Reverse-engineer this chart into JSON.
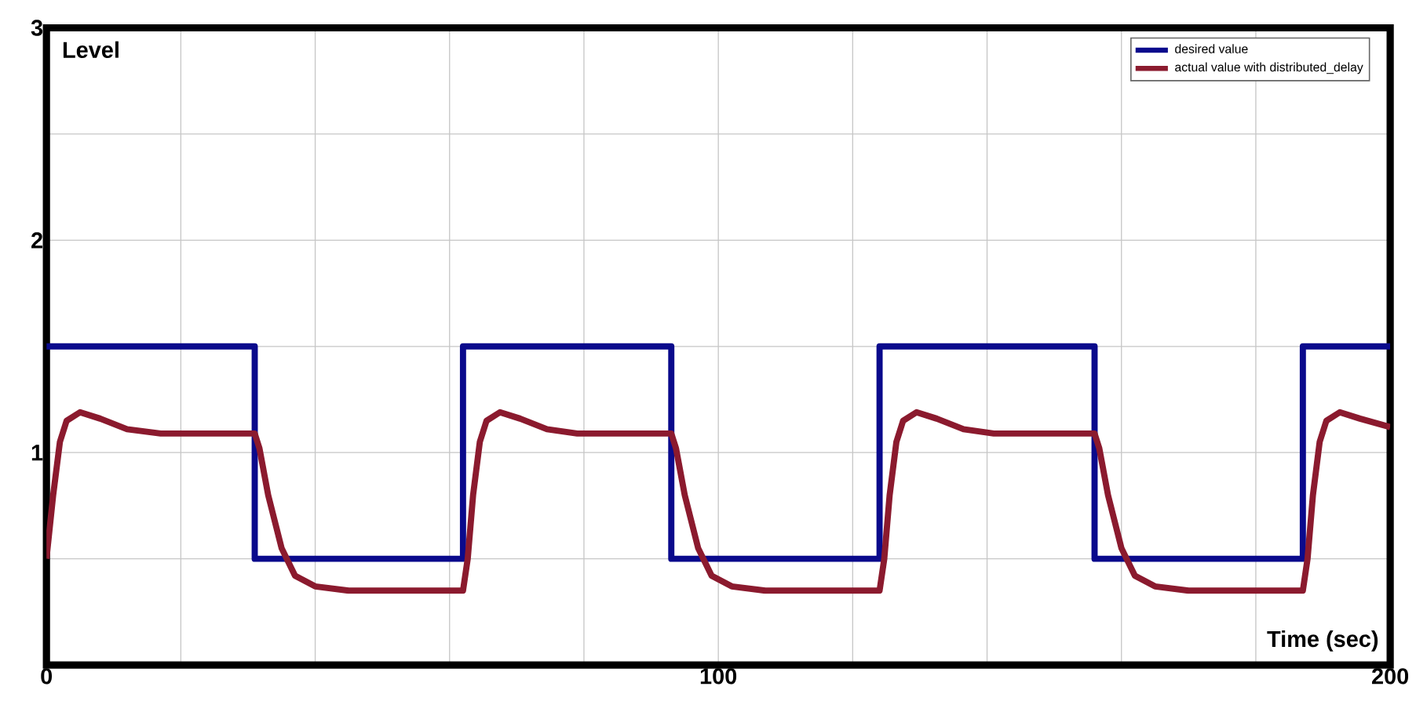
{
  "chart_data": {
    "type": "line",
    "xlabel": "Time (sec)",
    "ylabel": "Level",
    "xlim": [
      0,
      200
    ],
    "ylim": [
      0,
      3
    ],
    "xticks": [
      0,
      {
        "value": 20,
        "label": null
      },
      {
        "value": 40,
        "label": null
      },
      {
        "value": 60,
        "label": null
      },
      {
        "value": 80,
        "label": null
      },
      100,
      {
        "value": 120,
        "label": null
      },
      {
        "value": 140,
        "label": null
      },
      {
        "value": 160,
        "label": null
      },
      {
        "value": 180,
        "label": null
      },
      200
    ],
    "yticks": [
      {
        "value": 0,
        "label": null
      },
      {
        "value": 0.5,
        "label": null
      },
      1,
      {
        "value": 1.5,
        "label": null
      },
      2,
      {
        "value": 2.5,
        "label": null
      },
      3
    ],
    "grid": true,
    "legend": "top right",
    "line_style": "solid",
    "marker": "none",
    "series": [
      {
        "name": "desired value",
        "color": "#0a0a8c",
        "x": [
          0,
          31,
          31,
          62,
          62,
          93,
          93,
          124,
          124,
          156,
          156,
          187,
          187,
          200
        ],
        "values": [
          1.5,
          1.5,
          0.5,
          0.5,
          1.5,
          1.5,
          0.5,
          0.5,
          1.5,
          1.5,
          0.5,
          0.5,
          1.5,
          1.5
        ]
      },
      {
        "name": "actual value with distributed_delay",
        "color": "#8b1a2e",
        "x": [
          0,
          1,
          2,
          3,
          5,
          8,
          12,
          17,
          31,
          31.7,
          33,
          35,
          37,
          40,
          45,
          62,
          62.7,
          63.5,
          64.5,
          65.5,
          67.5,
          70.5,
          74.5,
          79,
          93,
          93.7,
          95,
          97,
          99,
          102,
          107,
          124,
          124.7,
          125.5,
          126.5,
          127.5,
          129.5,
          132.5,
          136.5,
          141,
          156,
          156.7,
          158,
          160,
          162,
          165,
          170,
          187,
          187.7,
          188.5,
          189.5,
          190.5,
          192.5,
          195.5,
          200
        ],
        "values": [
          0.5,
          0.8,
          1.05,
          1.15,
          1.19,
          1.16,
          1.11,
          1.09,
          1.09,
          1.02,
          0.8,
          0.55,
          0.42,
          0.37,
          0.35,
          0.35,
          0.5,
          0.8,
          1.05,
          1.15,
          1.19,
          1.16,
          1.11,
          1.09,
          1.09,
          1.02,
          0.8,
          0.55,
          0.42,
          0.37,
          0.35,
          0.35,
          0.5,
          0.8,
          1.05,
          1.15,
          1.19,
          1.16,
          1.11,
          1.09,
          1.09,
          1.02,
          0.8,
          0.55,
          0.42,
          0.37,
          0.35,
          0.35,
          0.5,
          0.8,
          1.05,
          1.15,
          1.19,
          1.16,
          1.12
        ]
      }
    ]
  }
}
